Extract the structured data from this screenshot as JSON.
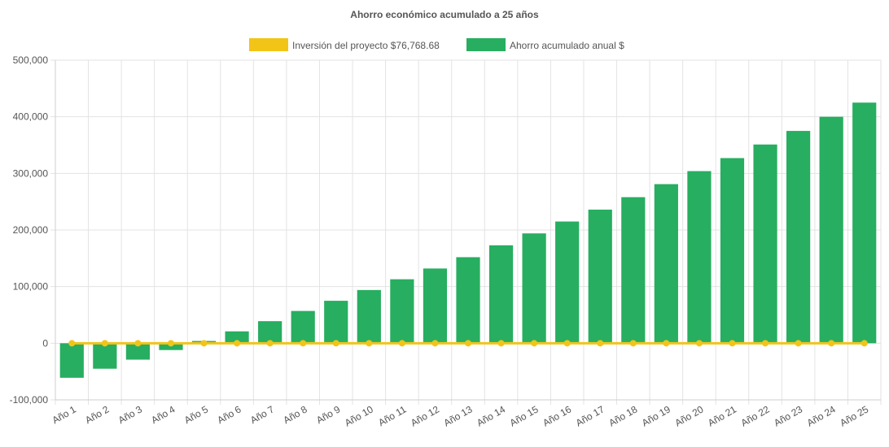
{
  "chart_data": {
    "type": "bar",
    "title": "Ahorro económico acumulado a 25 años",
    "xlabel": "",
    "ylabel": "",
    "ylim": [
      -100000,
      500000
    ],
    "y_ticks": [
      500000,
      400000,
      300000,
      200000,
      100000,
      0,
      -100000
    ],
    "y_tick_labels": [
      "500,000",
      "400,000",
      "300,000",
      "200,000",
      "100,000",
      "0",
      "-100,000"
    ],
    "grid": true,
    "legend_position": "top",
    "categories": [
      "Año 1",
      "Año 2",
      "Año 3",
      "Año 4",
      "Año 5",
      "Año 6",
      "Año 7",
      "Año 8",
      "Año 9",
      "Año 10",
      "Año 11",
      "Año 12",
      "Año 13",
      "Año 14",
      "Año 15",
      "Año 16",
      "Año 17",
      "Año 18",
      "Año 19",
      "Año 20",
      "Año 21",
      "Año 22",
      "Año 23",
      "Año 24",
      "Año 25"
    ],
    "series": [
      {
        "name": "Inversión del proyecto $76,768.68",
        "type": "line",
        "color": "#f2c418",
        "values": [
          0,
          0,
          0,
          0,
          0,
          0,
          0,
          0,
          0,
          0,
          0,
          0,
          0,
          0,
          0,
          0,
          0,
          0,
          0,
          0,
          0,
          0,
          0,
          0,
          0
        ]
      },
      {
        "name": "Ahorro acumulado anual $",
        "type": "bar",
        "color": "#27ae60",
        "values": [
          -61000,
          -45000,
          -29000,
          -12000,
          4000,
          21000,
          39000,
          57000,
          75000,
          94000,
          113000,
          132000,
          152000,
          173000,
          194000,
          215000,
          236000,
          258000,
          281000,
          304000,
          327000,
          351000,
          375000,
          400000,
          425000
        ]
      }
    ]
  }
}
